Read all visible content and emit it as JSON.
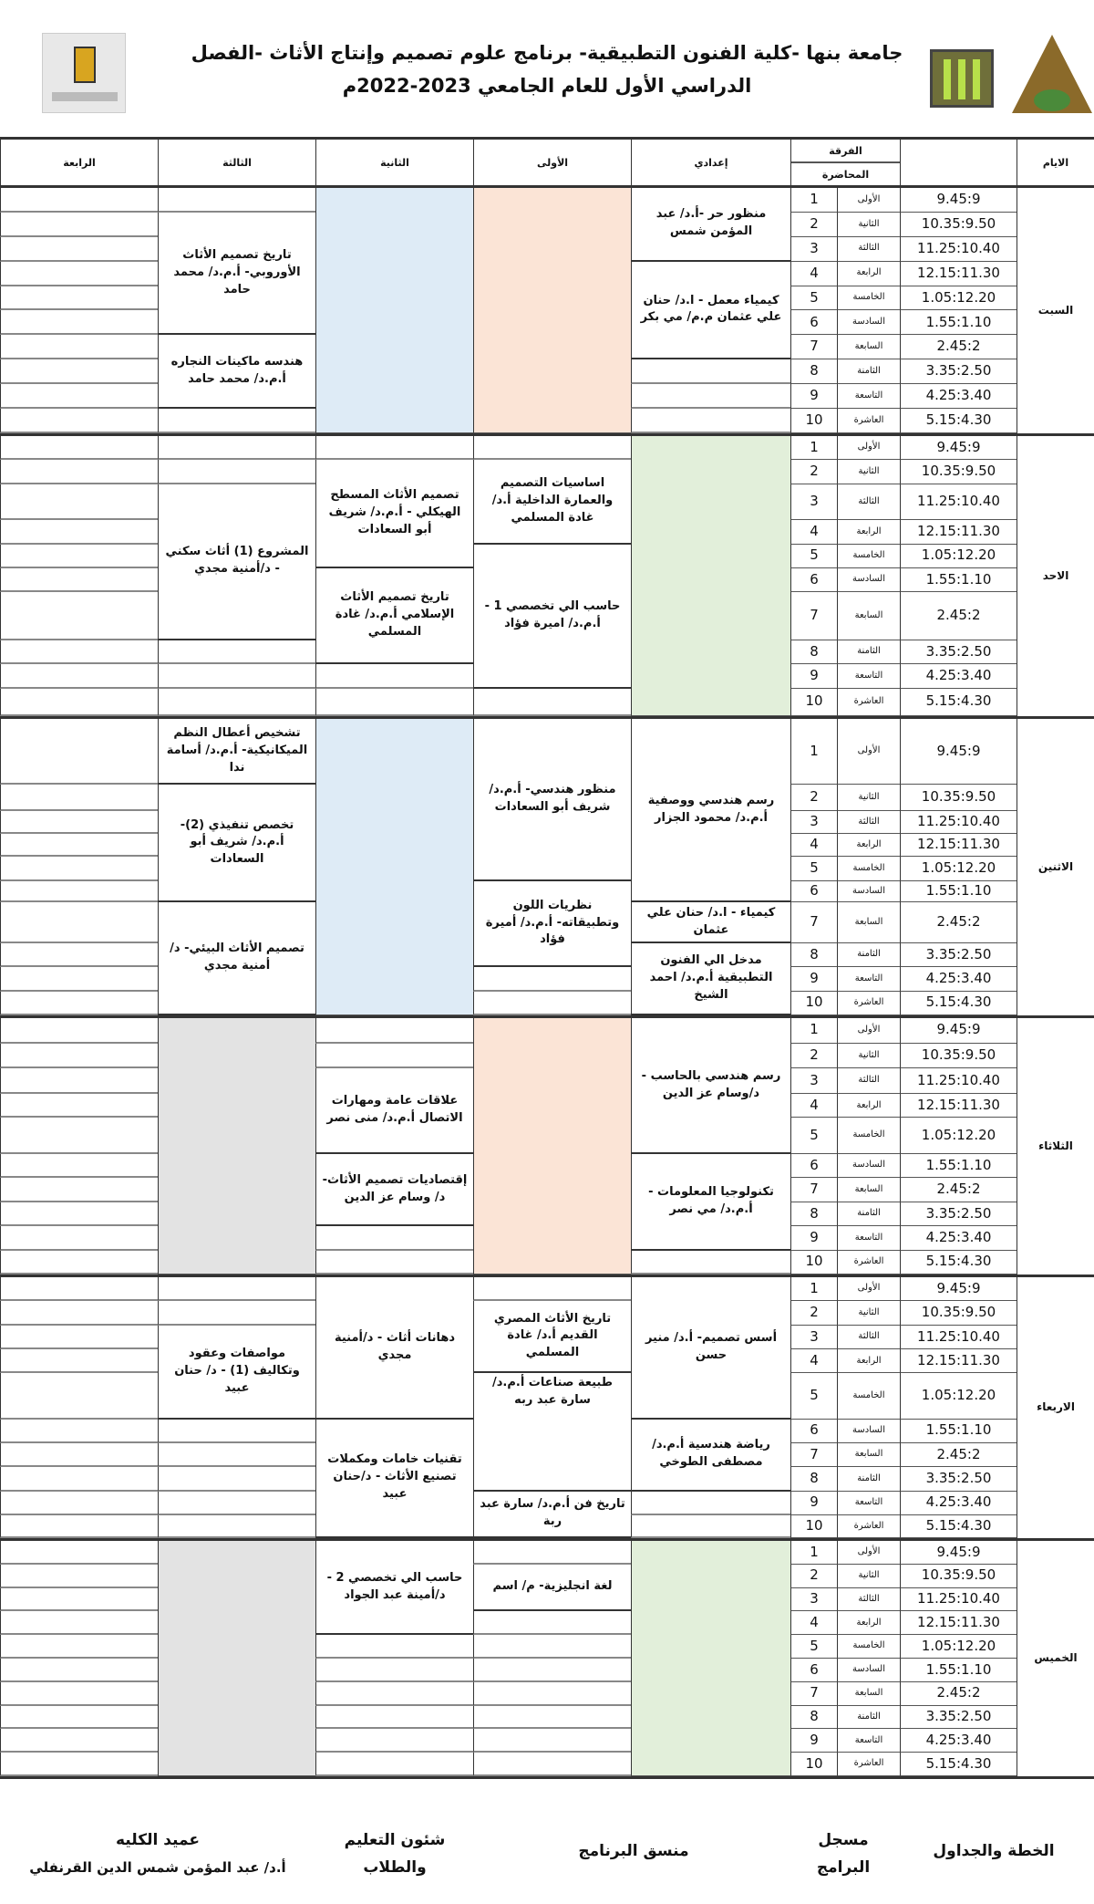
{
  "header": {
    "title_line1": "جامعة بنها -كلية الفنون التطبيقية- برنامج علوم تصميم وإنتاج الأثاث -الفصل",
    "title_line2": "الدراسي الأول للعام الجامعي 2023-2022م"
  },
  "colors": {
    "peach": "#fbe4d6",
    "blue": "#deebf6",
    "green": "#e2efda",
    "gray": "#e3e3e3"
  },
  "columns": {
    "days": "الايام",
    "time": "",
    "group": "الفرقة",
    "lecture": "المحاضرة",
    "levels": [
      "إعدادي",
      "الأولى",
      "الثانية",
      "الثالثة",
      "الرابعة"
    ]
  },
  "period_names": [
    "الأولى",
    "الثانية",
    "الثالثة",
    "الرابعة",
    "الخامسة",
    "السادسة",
    "السابعة",
    "الثامنة",
    "التاسعة",
    "العاشرة"
  ],
  "period_numbers": [
    "1",
    "2",
    "3",
    "4",
    "5",
    "6",
    "7",
    "8",
    "9",
    "10"
  ],
  "times": [
    "9.45:9",
    "10.35:9.50",
    "11.25:10.40",
    "12.15:11.30",
    "1.05:12.20",
    "1.55:1.10",
    "2.45:2",
    "3.35:2.50",
    "4.25:3.40",
    "5.15:4.30"
  ],
  "days": [
    {
      "name": "السبت",
      "levels": [
        {
          "courses": [
            {
              "periods": [
                1,
                3
              ],
              "text": "منظور حر -أ.د/ عبد المؤمن شمس"
            },
            {
              "periods": [
                4,
                7
              ],
              "text": "كيمياء معمل - ا.د/ حنان علي عثمان م.م/ مي بكر"
            }
          ]
        },
        {
          "fill": "peach",
          "courses": []
        },
        {
          "fill": "blue",
          "courses": []
        },
        {
          "courses": [
            {
              "periods": [
                2,
                6
              ],
              "text": "تاريخ تصميم الأثاث الأوروبي- أ.م.د/ محمد حامد"
            },
            {
              "periods": [
                7,
                9
              ],
              "text": "هندسه ماكينات النجاره أ.م.د/ محمد حامد"
            }
          ]
        },
        {
          "courses": []
        }
      ]
    },
    {
      "name": "الاحد",
      "levels": [
        {
          "fill": "green",
          "courses": []
        },
        {
          "courses": [
            {
              "periods": [
                2,
                4
              ],
              "text": "اساسيات التصميم والعمارة الداخلية أ.د/ غادة المسلمي"
            },
            {
              "periods": [
                5,
                9
              ],
              "text": "حاسب الي تخصصي 1 - أ.م.د/ اميرة فؤاد"
            }
          ]
        },
        {
          "courses": [
            {
              "periods": [
                2,
                5
              ],
              "text": "تصميم الأثاث المسطح الهيكلي - أ.م.د/ شريف أبو السعادات"
            },
            {
              "periods": [
                6,
                8
              ],
              "text": "تاريخ تصميم الأثاث الإسلامي أ.م.د/ غادة المسلمي"
            }
          ]
        },
        {
          "courses": [
            {
              "periods": [
                3,
                7
              ],
              "text": "المشروع (1) أثاث سكني - د/أمنية مجدي"
            }
          ]
        },
        {
          "courses": []
        }
      ]
    },
    {
      "name": "الاثنين",
      "levels": [
        {
          "courses": [
            {
              "periods": [
                1,
                6
              ],
              "text": "رسم هندسي ووصفية أ.م.د/ محمود الجزار"
            },
            {
              "periods": [
                7,
                7
              ],
              "text": "كيمياء - ا.د/ حنان علي عثمان"
            },
            {
              "periods": [
                8,
                10
              ],
              "text": "مدخل الي الفنون التطبيقية أ.م.د/ احمد الشيخ"
            }
          ]
        },
        {
          "courses": [
            {
              "periods": [
                1,
                5
              ],
              "text": "منظور هندسي- أ.م.د/ شريف أبو السعادات"
            },
            {
              "periods": [
                6,
                8
              ],
              "text": "نظريات اللون وتطبيقاته- أ.م.د/ أميرة فؤاد"
            }
          ]
        },
        {
          "fill": "blue",
          "courses": []
        },
        {
          "courses": [
            {
              "periods": [
                1,
                1
              ],
              "text": "تشخيص أعطال النظم الميكانيكية- أ.م.د/ أسامة ندا"
            },
            {
              "periods": [
                2,
                6
              ],
              "text": "تخصص تنفيذي (2)- أ.م.د/ شريف أبو السعادات"
            },
            {
              "periods": [
                7,
                10
              ],
              "text": "تصميم الأثاث البيئي- د/أمنية مجدي"
            }
          ]
        },
        {
          "courses": []
        }
      ]
    },
    {
      "name": "الثلاثاء",
      "levels": [
        {
          "courses": [
            {
              "periods": [
                1,
                5
              ],
              "text": "رسم هندسي بالحاسب - د/وسام عز الدين"
            },
            {
              "periods": [
                6,
                9
              ],
              "text": "تكنولوجيا المعلومات - أ.م.د/ مي نصر"
            }
          ]
        },
        {
          "fill": "peach",
          "courses": []
        },
        {
          "courses": [
            {
              "periods": [
                3,
                5
              ],
              "text": "علاقات عامة ومهارات الاتصال أ.م.د/ منى نصر"
            },
            {
              "periods": [
                6,
                8
              ],
              "text": "إقتصاديات تصميم الأثاث- د/ وسام عز الدين"
            }
          ]
        },
        {
          "fill": "gray",
          "courses": []
        },
        {
          "courses": []
        }
      ]
    },
    {
      "name": "الاربعاء",
      "levels": [
        {
          "courses": [
            {
              "periods": [
                1,
                5
              ],
              "text": "أسس تصميم- أ.د/ منير حسن"
            },
            {
              "periods": [
                6,
                8
              ],
              "text": "رياضة هندسية أ.م.د/ مصطفى الطوخي"
            }
          ]
        },
        {
          "courses": [
            {
              "periods": [
                2,
                4
              ],
              "text": "تاريخ الأثاث المصري القديم أ.د/ غادة المسلمي"
            },
            {
              "periods": [
                5,
                8
              ],
              "text": "طبيعة صناعات أ.م.د/ سارة عبد ربه",
              "align": "top"
            },
            {
              "periods": [
                9,
                10
              ],
              "text": "تاريخ فن أ.م.د/ سارة عبد ربة"
            }
          ]
        },
        {
          "courses": [
            {
              "periods": [
                1,
                5
              ],
              "text": "دهانات أثاث - د/أمنية مجدي"
            },
            {
              "periods": [
                6,
                10
              ],
              "text": "تقنيات خامات ومكملات تصنيع الأثاث - د/حنان عبيد"
            }
          ]
        },
        {
          "courses": [
            {
              "periods": [
                3,
                5
              ],
              "text": "مواصفات وعقود وتكاليف (1) - د/ حنان عبيد"
            }
          ]
        },
        {
          "courses": []
        }
      ]
    },
    {
      "name": "الخميس",
      "levels": [
        {
          "fill": "green",
          "courses": []
        },
        {
          "courses": [
            {
              "periods": [
                2,
                3
              ],
              "text": "لغة انجليزية- م/ اسم"
            }
          ]
        },
        {
          "courses": [
            {
              "periods": [
                1,
                4
              ],
              "text": "حاسب الي تخصصي 2 - د/أمينة عبد الجواد"
            }
          ]
        },
        {
          "fill": "gray",
          "courses": []
        },
        {
          "courses": []
        }
      ]
    }
  ],
  "footer": {
    "plans": "الخطة والجداول",
    "registrar": "مسجل البرامج",
    "coordinator": "منسق البرنامج",
    "student_affairs": "شئون التعليم والطلاب",
    "dean_title": "عميد الكليه",
    "dean_name": "أ.د/ عبد المؤمن شمس الدين القرنفلي"
  }
}
